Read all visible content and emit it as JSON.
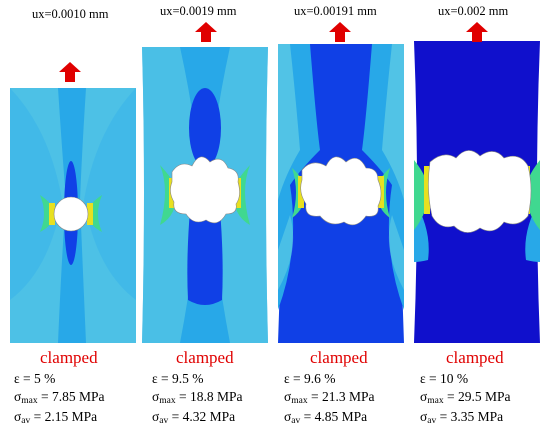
{
  "colors": {
    "background_band": "#28a8e8",
    "light_band": "#6cd6e4",
    "dark_region": "#1040e6",
    "deep_dark": "#1010cc",
    "yellow_stress": "#e8e020",
    "green_stress": "#40d890",
    "arrow": "#e00000",
    "clamped_text": "#e00000"
  },
  "arrow_icon": "up-arrow-icon",
  "panels": [
    {
      "id": "panel-1",
      "ux": "ux=0.0010 mm",
      "clamped": "clamped",
      "eps_label": "ε = 5 %",
      "smax_sym": "σ",
      "smax_sub": "max",
      "smax_val": " = 7.85 MPa",
      "sav_sym": "σ",
      "sav_sub": "av",
      "sav_val": " = 2.15 MPa"
    },
    {
      "id": "panel-2",
      "ux": "ux=0.0019 mm",
      "clamped": "clamped",
      "eps_label": "ε = 9.5 %",
      "smax_sym": "σ",
      "smax_sub": "max",
      "smax_val": " = 18.8 MPa",
      "sav_sym": "σ",
      "sav_sub": "av",
      "sav_val": " = 4.32 MPa"
    },
    {
      "id": "panel-3",
      "ux": "ux=0.00191 mm",
      "clamped": "clamped",
      "eps_label": "ε = 9.6 %",
      "smax_sym": "σ",
      "smax_sub": "max",
      "smax_val": " = 21.3 MPa",
      "sav_sym": "σ",
      "sav_sub": "av",
      "sav_val": " = 4.85 MPa"
    },
    {
      "id": "panel-4",
      "ux": "ux=0.002 mm",
      "clamped": "clamped",
      "eps_label": "ε = 10 %",
      "smax_sym": "σ",
      "smax_sub": "max",
      "smax_val": " = 29.5 MPa",
      "sav_sym": "σ",
      "sav_sub": "av",
      "sav_val": " = 3.35 MPa"
    }
  ]
}
